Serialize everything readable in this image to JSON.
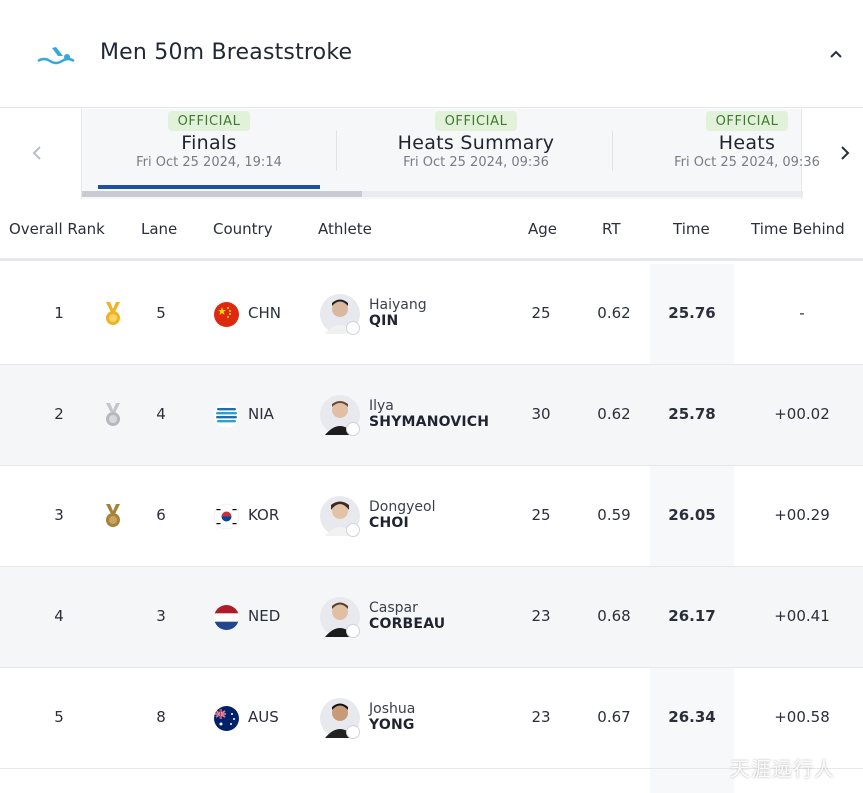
{
  "event": {
    "title": "Men 50m Breaststroke",
    "icon": "swimming-icon"
  },
  "tabs": [
    {
      "badge": "OFFICIAL",
      "name": "Finals",
      "date": "Fri Oct 25 2024, 19:14",
      "active": true
    },
    {
      "badge": "OFFICIAL",
      "name": "Heats Summary",
      "date": "Fri Oct 25 2024, 09:36",
      "active": false
    },
    {
      "badge": "OFFICIAL",
      "name": "Heats",
      "date": "Fri Oct 25 2024, 09:36",
      "active": false
    }
  ],
  "columns": {
    "rank": "Overall Rank",
    "lane": "Lane",
    "country": "Country",
    "athlete": "Athlete",
    "age": "Age",
    "rt": "RT",
    "time": "Time",
    "behind": "Time Behind"
  },
  "rows": [
    {
      "rank": "1",
      "medal": "gold-medal-icon",
      "lane": "5",
      "country": "CHN",
      "flag": "china-flag-icon",
      "first": "Haiyang",
      "last": "QIN",
      "age": "25",
      "rt": "0.62",
      "time": "25.76",
      "behind": "-"
    },
    {
      "rank": "2",
      "medal": "silver-medal-icon",
      "lane": "4",
      "country": "NIA",
      "flag": "neutral-athletes-flag-icon",
      "first": "Ilya",
      "last": "SHYMANOVICH",
      "age": "30",
      "rt": "0.62",
      "time": "25.78",
      "behind": "+00.02"
    },
    {
      "rank": "3",
      "medal": "bronze-medal-icon",
      "lane": "6",
      "country": "KOR",
      "flag": "korea-flag-icon",
      "first": "Dongyeol",
      "last": "CHOI",
      "age": "25",
      "rt": "0.59",
      "time": "26.05",
      "behind": "+00.29"
    },
    {
      "rank": "4",
      "medal": "",
      "lane": "3",
      "country": "NED",
      "flag": "netherlands-flag-icon",
      "first": "Caspar",
      "last": "CORBEAU",
      "age": "23",
      "rt": "0.68",
      "time": "26.17",
      "behind": "+00.41"
    },
    {
      "rank": "5",
      "medal": "",
      "lane": "8",
      "country": "AUS",
      "flag": "australia-flag-icon",
      "first": "Joshua",
      "last": "YONG",
      "age": "23",
      "rt": "0.67",
      "time": "26.34",
      "behind": "+00.58"
    }
  ],
  "watermark": "天涯远行人",
  "colors": {
    "accent": "#1e4fa1",
    "badge_bg": "#e2f1da",
    "badge_text": "#3f7a2e",
    "gold": "#f0b323",
    "silver": "#b5b8bd",
    "bronze": "#a8803a"
  }
}
